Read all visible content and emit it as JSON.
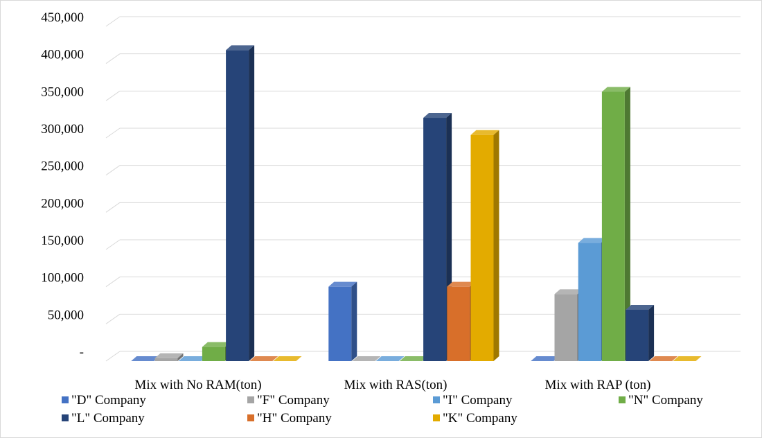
{
  "chart_data": {
    "type": "bar",
    "variant": "3d-clustered-column",
    "title": "",
    "xlabel": "",
    "ylabel": "",
    "categories": [
      "Mix with No RAM(ton)",
      "Mix with RAS(ton)",
      "Mix with RAP (ton)"
    ],
    "ylim": [
      0,
      450000
    ],
    "ytick_values": [
      0,
      50000,
      100000,
      150000,
      200000,
      250000,
      300000,
      350000,
      400000,
      450000
    ],
    "ytick_labels": [
      "-",
      "50,000",
      "100,000",
      "150,000",
      "200,000",
      "250,000",
      "300,000",
      "350,000",
      "400,000",
      "450,000"
    ],
    "grid": true,
    "legend_position": "bottom",
    "series": [
      {
        "name": "\"D\" Company",
        "color": "#4472c4",
        "values": [
          0,
          100000,
          0
        ]
      },
      {
        "name": "\"F\" Company",
        "color": "#a5a5a5",
        "values": [
          4000,
          0,
          90000
        ]
      },
      {
        "name": "\"I\" Company",
        "color": "#5b9bd5",
        "values": [
          0,
          0,
          159000
        ]
      },
      {
        "name": "\"N\" Company",
        "color": "#70ad47",
        "values": [
          19000,
          0,
          362000
        ]
      },
      {
        "name": "\"L\" Company",
        "color": "#264478",
        "values": [
          418000,
          327000,
          69000
        ]
      },
      {
        "name": "\"H\" Company",
        "color": "#d86f2a",
        "values": [
          0,
          100000,
          0
        ]
      },
      {
        "name": "\"K\" Company",
        "color": "#e3ab00",
        "values": [
          0,
          304000,
          0
        ]
      }
    ]
  }
}
